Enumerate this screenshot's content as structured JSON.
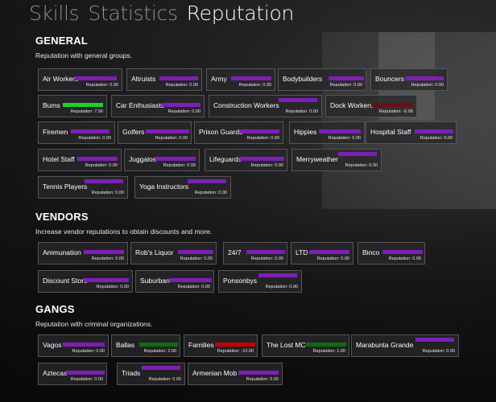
{
  "tabs": [
    {
      "label": "Skills",
      "active": false
    },
    {
      "label": "Statistics",
      "active": false
    },
    {
      "label": "Reputation",
      "active": true
    }
  ],
  "colors": {
    "neutral": "#7d1fb5",
    "positive": "#1ecf26",
    "negative": "#c50000",
    "positive_dark": "#0f6b12",
    "negative_dark": "#7a0a0a"
  },
  "reputation_prefix": "Reputation: ",
  "sections": [
    {
      "title": "GENERAL",
      "description": "Reputation with general groups.",
      "items": [
        {
          "name": "Air Workers",
          "value": "0.00",
          "color": "#7d1fb5"
        },
        {
          "name": "Altruists",
          "value": "0.00",
          "color": "#7d1fb5"
        },
        {
          "name": "Army",
          "value": "0.00",
          "color": "#7d1fb5"
        },
        {
          "name": "Bodybuilders",
          "value": "0.00",
          "color": "#7d1fb5"
        },
        {
          "name": "Bouncers",
          "value": "0.00",
          "color": "#7d1fb5"
        },
        {
          "name": "Bums",
          "value": "7.56",
          "color": "#1ecf26"
        },
        {
          "name": "Car Enthusiasts",
          "value": "0.00",
          "color": "#7d1fb5"
        },
        {
          "name": "Construction Workers",
          "value": "0.00",
          "color": "#7d1fb5"
        },
        {
          "name": "Dock Workers",
          "value": "-0.05",
          "color": "#6b0d14"
        },
        {
          "name": "Firemen",
          "value": "0.00",
          "color": "#7d1fb5"
        },
        {
          "name": "Golfers",
          "value": "0.00",
          "color": "#7d1fb5"
        },
        {
          "name": "Prison Guards",
          "value": "0.00",
          "color": "#7d1fb5"
        },
        {
          "name": "Hippies",
          "value": "0.00",
          "color": "#7d1fb5"
        },
        {
          "name": "Hospital Staff",
          "value": "0.00",
          "color": "#7d1fb5"
        },
        {
          "name": "Hotel Staff",
          "value": "0.00",
          "color": "#7d1fb5"
        },
        {
          "name": "Juggalos",
          "value": "0.00",
          "color": "#7d1fb5"
        },
        {
          "name": "Lifeguards",
          "value": "0.00",
          "color": "#7d1fb5"
        },
        {
          "name": "Merryweather",
          "value": "0.00",
          "color": "#7d1fb5"
        },
        {
          "name": "Tennis Players",
          "value": "0.00",
          "color": "#7d1fb5"
        },
        {
          "name": "Yoga Instructors",
          "value": "0.00",
          "color": "#7d1fb5"
        }
      ]
    },
    {
      "title": "VENDORS",
      "description": "Increase vendor reputations to obtain discounts and more.",
      "items": [
        {
          "name": "Ammunation",
          "value": "0.00",
          "color": "#7d1fb5"
        },
        {
          "name": "Rob's Liquor",
          "value": "0.00",
          "color": "#7d1fb5"
        },
        {
          "name": "24/7",
          "value": "0.00",
          "color": "#7d1fb5"
        },
        {
          "name": "LTD",
          "value": "0.00",
          "color": "#7d1fb5"
        },
        {
          "name": "Binco",
          "value": "0.00",
          "color": "#7d1fb5"
        },
        {
          "name": "Discount Store",
          "value": "0.00",
          "color": "#7d1fb5"
        },
        {
          "name": "Suburban",
          "value": "0.00",
          "color": "#7d1fb5"
        },
        {
          "name": "Ponsonbys",
          "value": "0.00",
          "color": "#7d1fb5"
        }
      ]
    },
    {
      "title": "GANGS",
      "description": "Reputation with criminal organizations.",
      "items": [
        {
          "name": "Vagos",
          "value": "0.00",
          "color": "#7d1fb5"
        },
        {
          "name": "Ballas",
          "value": "2.00",
          "color": "#0f6b12"
        },
        {
          "name": "Families",
          "value": "-10.00",
          "color": "#c50000"
        },
        {
          "name": "The Lost MC",
          "value": "1.00",
          "color": "#0f6b12"
        },
        {
          "name": "Marabunta Grande",
          "value": "0.00",
          "color": "#7d1fb5"
        },
        {
          "name": "Aztecas",
          "value": "0.00",
          "color": "#7d1fb5"
        },
        {
          "name": "Triads",
          "value": "0.00",
          "color": "#7d1fb5"
        },
        {
          "name": "Armenian Mob",
          "value": "0.00",
          "color": "#7d1fb5"
        }
      ]
    }
  ]
}
